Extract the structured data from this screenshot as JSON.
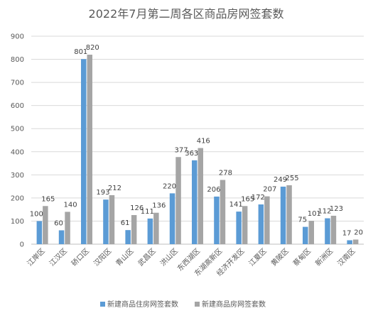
{
  "chart_data": {
    "type": "bar",
    "title": "2022年7月第二周各区商品房网签套数",
    "categories": [
      "江岸区",
      "江汉区",
      "硚口区",
      "汉阳区",
      "青山区",
      "武昌区",
      "洪山区",
      "东西湖区",
      "东湖高新区",
      "经济开发区",
      "江夏区",
      "黄陂区",
      "蔡甸区",
      "新洲区",
      "汉南区"
    ],
    "series": [
      {
        "name": "新建商品住房网签套数",
        "color": "#5B9BD5",
        "values": [
          100,
          60,
          801,
          193,
          61,
          111,
          220,
          363,
          206,
          141,
          172,
          249,
          75,
          112,
          17
        ]
      },
      {
        "name": "新建商品房网签套数",
        "color": "#A5A5A5",
        "values": [
          165,
          140,
          820,
          212,
          126,
          136,
          377,
          416,
          278,
          165,
          207,
          255,
          101,
          123,
          20
        ]
      }
    ],
    "ylim": [
      0,
      900
    ],
    "yticks": [
      0,
      100,
      200,
      300,
      400,
      500,
      600,
      700,
      800,
      900
    ],
    "grid": true,
    "legend_position": "bottom"
  }
}
